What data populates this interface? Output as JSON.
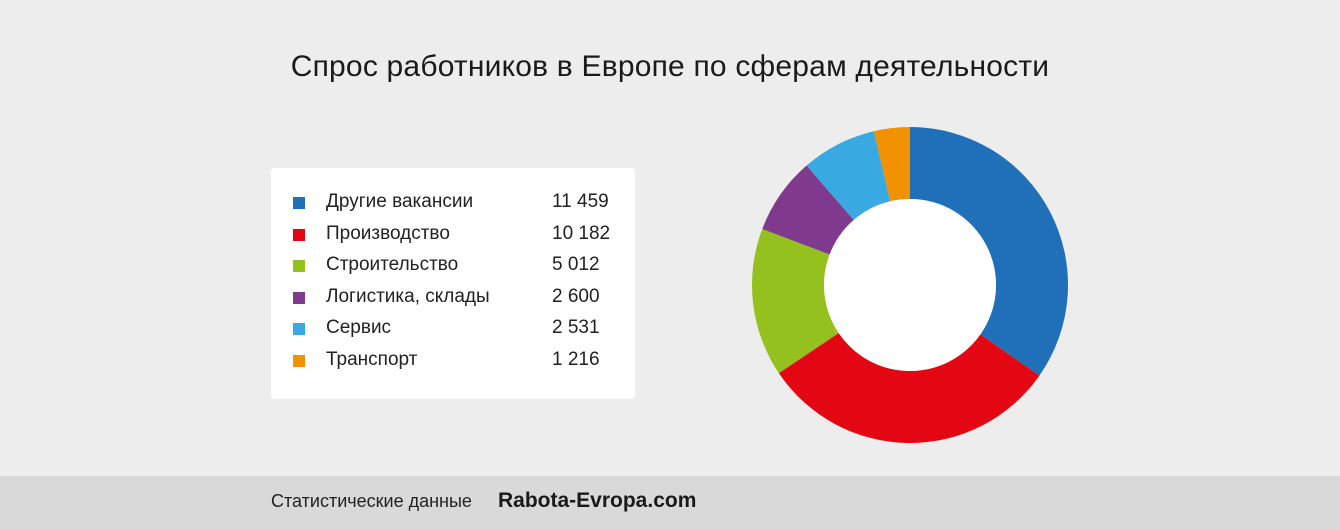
{
  "chart_data": {
    "type": "pie",
    "title": "Спрос работников в Европе по сферам деятельности",
    "categories": [
      "Другие вакансии",
      "Производство",
      "Строительство",
      "Логистика, склады",
      "Сервис",
      "Транспорт"
    ],
    "value_labels": [
      "11 459",
      "10 182",
      "5 012",
      "2 600",
      "2 531",
      "1 216"
    ],
    "values": [
      11459,
      10182,
      5012,
      2600,
      2531,
      1216
    ],
    "colors": [
      "#1f70b8",
      "#e30613",
      "#95c11f",
      "#7f3a8d",
      "#39a9e1",
      "#f39200"
    ],
    "donut": true,
    "legend": "left"
  },
  "footer": {
    "caption": "Статистические данные",
    "brand": "Rabota-Evropa.com"
  }
}
